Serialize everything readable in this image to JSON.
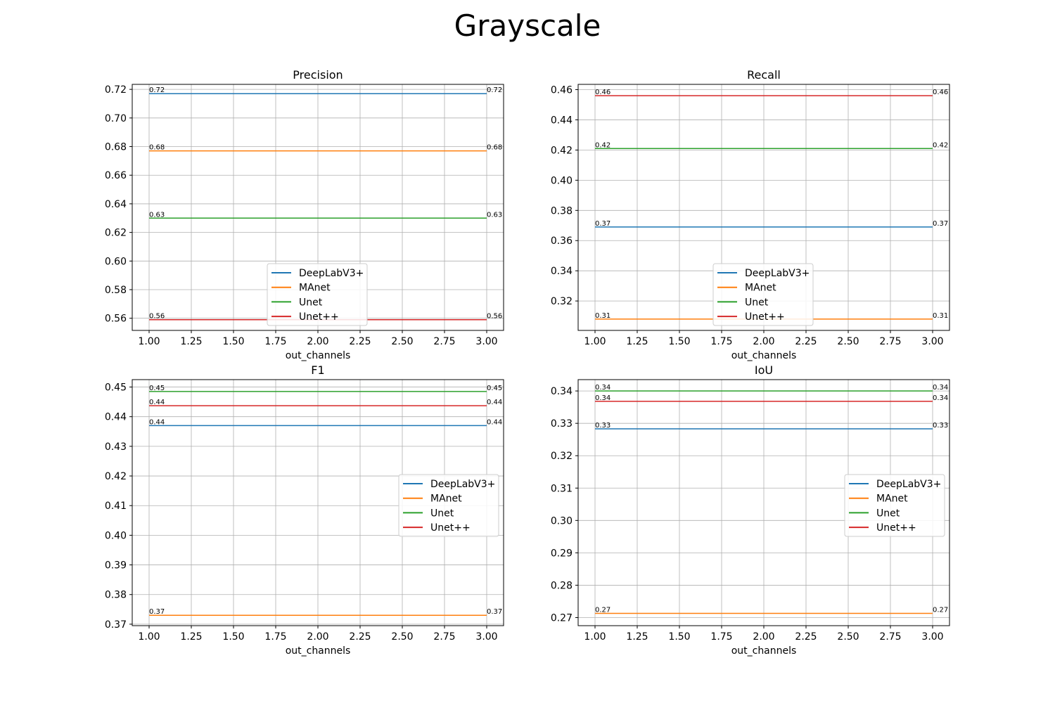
{
  "figure": {
    "title": "Grayscale"
  },
  "colors": {
    "DeepLabV3+": "#1f77b4",
    "MAnet": "#ff7f0e",
    "Unet": "#2ca02c",
    "Unet++": "#d62728"
  },
  "chart_data": [
    {
      "type": "line",
      "title": "Precision",
      "xlabel": "out_channels",
      "ylabel": "",
      "x": [
        1,
        3
      ],
      "xlim": [
        0.9,
        3.1
      ],
      "ylim": [
        0.5515,
        0.7235
      ],
      "xticks": [
        1.0,
        1.25,
        1.5,
        1.75,
        2.0,
        2.25,
        2.5,
        2.75,
        3.0
      ],
      "xtick_labels": [
        "1.00",
        "1.25",
        "1.50",
        "1.75",
        "2.00",
        "2.25",
        "2.50",
        "2.75",
        "3.00"
      ],
      "yticks": [
        0.56,
        0.58,
        0.6,
        0.62,
        0.64,
        0.66,
        0.68,
        0.7,
        0.72
      ],
      "ytick_labels": [
        "0.56",
        "0.58",
        "0.60",
        "0.62",
        "0.64",
        "0.66",
        "0.68",
        "0.70",
        "0.72"
      ],
      "grid": true,
      "legend": "lower-center",
      "series": [
        {
          "name": "DeepLabV3+",
          "values": [
            0.717,
            0.717
          ],
          "labels": [
            "0.72",
            "0.72"
          ]
        },
        {
          "name": "MAnet",
          "values": [
            0.677,
            0.677
          ],
          "labels": [
            "0.68",
            "0.68"
          ]
        },
        {
          "name": "Unet",
          "values": [
            0.63,
            0.63
          ],
          "labels": [
            "0.63",
            "0.63"
          ]
        },
        {
          "name": "Unet++",
          "values": [
            0.559,
            0.559
          ],
          "labels": [
            "0.56",
            "0.56"
          ]
        }
      ]
    },
    {
      "type": "line",
      "title": "Recall",
      "xlabel": "out_channels",
      "ylabel": "",
      "x": [
        1,
        3
      ],
      "xlim": [
        0.9,
        3.1
      ],
      "ylim": [
        0.3005,
        0.4635
      ],
      "xticks": [
        1.0,
        1.25,
        1.5,
        1.75,
        2.0,
        2.25,
        2.5,
        2.75,
        3.0
      ],
      "xtick_labels": [
        "1.00",
        "1.25",
        "1.50",
        "1.75",
        "2.00",
        "2.25",
        "2.50",
        "2.75",
        "3.00"
      ],
      "yticks": [
        0.32,
        0.34,
        0.36,
        0.38,
        0.4,
        0.42,
        0.44,
        0.46
      ],
      "ytick_labels": [
        "0.32",
        "0.34",
        "0.36",
        "0.38",
        "0.40",
        "0.42",
        "0.44",
        "0.46"
      ],
      "grid": true,
      "legend": "lower-center",
      "series": [
        {
          "name": "DeepLabV3+",
          "values": [
            0.369,
            0.369
          ],
          "labels": [
            "0.37",
            "0.37"
          ]
        },
        {
          "name": "MAnet",
          "values": [
            0.308,
            0.308
          ],
          "labels": [
            "0.31",
            "0.31"
          ]
        },
        {
          "name": "Unet",
          "values": [
            0.421,
            0.421
          ],
          "labels": [
            "0.42",
            "0.42"
          ]
        },
        {
          "name": "Unet++",
          "values": [
            0.456,
            0.456
          ],
          "labels": [
            "0.46",
            "0.46"
          ]
        }
      ]
    },
    {
      "type": "line",
      "title": "F1",
      "xlabel": "out_channels",
      "ylabel": "",
      "x": [
        1,
        3
      ],
      "xlim": [
        0.9,
        3.1
      ],
      "ylim": [
        0.3695,
        0.4525
      ],
      "xticks": [
        1.0,
        1.25,
        1.5,
        1.75,
        2.0,
        2.25,
        2.5,
        2.75,
        3.0
      ],
      "xtick_labels": [
        "1.00",
        "1.25",
        "1.50",
        "1.75",
        "2.00",
        "2.25",
        "2.50",
        "2.75",
        "3.00"
      ],
      "yticks": [
        0.37,
        0.38,
        0.39,
        0.4,
        0.41,
        0.42,
        0.43,
        0.44,
        0.45
      ],
      "ytick_labels": [
        "0.37",
        "0.38",
        "0.39",
        "0.40",
        "0.41",
        "0.42",
        "0.43",
        "0.44",
        "0.45"
      ],
      "grid": true,
      "legend": "center-right",
      "series": [
        {
          "name": "DeepLabV3+",
          "values": [
            0.437,
            0.437
          ],
          "labels": [
            "0.44",
            "0.44"
          ]
        },
        {
          "name": "MAnet",
          "values": [
            0.373,
            0.373
          ],
          "labels": [
            "0.37",
            "0.37"
          ]
        },
        {
          "name": "Unet",
          "values": [
            0.4485,
            0.4485
          ],
          "labels": [
            "0.45",
            "0.45"
          ]
        },
        {
          "name": "Unet++",
          "values": [
            0.4437,
            0.4437
          ],
          "labels": [
            "0.44",
            "0.44"
          ]
        }
      ]
    },
    {
      "type": "line",
      "title": "IoU",
      "xlabel": "out_channels",
      "ylabel": "",
      "x": [
        1,
        3
      ],
      "xlim": [
        0.9,
        3.1
      ],
      "ylim": [
        0.2675,
        0.3435
      ],
      "xticks": [
        1.0,
        1.25,
        1.5,
        1.75,
        2.0,
        2.25,
        2.5,
        2.75,
        3.0
      ],
      "xtick_labels": [
        "1.00",
        "1.25",
        "1.50",
        "1.75",
        "2.00",
        "2.25",
        "2.50",
        "2.75",
        "3.00"
      ],
      "yticks": [
        0.27,
        0.28,
        0.29,
        0.3,
        0.31,
        0.32,
        0.33,
        0.34
      ],
      "ytick_labels": [
        "0.27",
        "0.28",
        "0.29",
        "0.30",
        "0.31",
        "0.32",
        "0.33",
        "0.34"
      ],
      "grid": true,
      "legend": "center-right",
      "series": [
        {
          "name": "DeepLabV3+",
          "values": [
            0.3283,
            0.3283
          ],
          "labels": [
            "0.33",
            "0.33"
          ]
        },
        {
          "name": "MAnet",
          "values": [
            0.2713,
            0.2713
          ],
          "labels": [
            "0.27",
            "0.27"
          ]
        },
        {
          "name": "Unet",
          "values": [
            0.34,
            0.34
          ],
          "labels": [
            "0.34",
            "0.34"
          ]
        },
        {
          "name": "Unet++",
          "values": [
            0.3368,
            0.3368
          ],
          "labels": [
            "0.34",
            "0.34"
          ]
        }
      ]
    }
  ]
}
